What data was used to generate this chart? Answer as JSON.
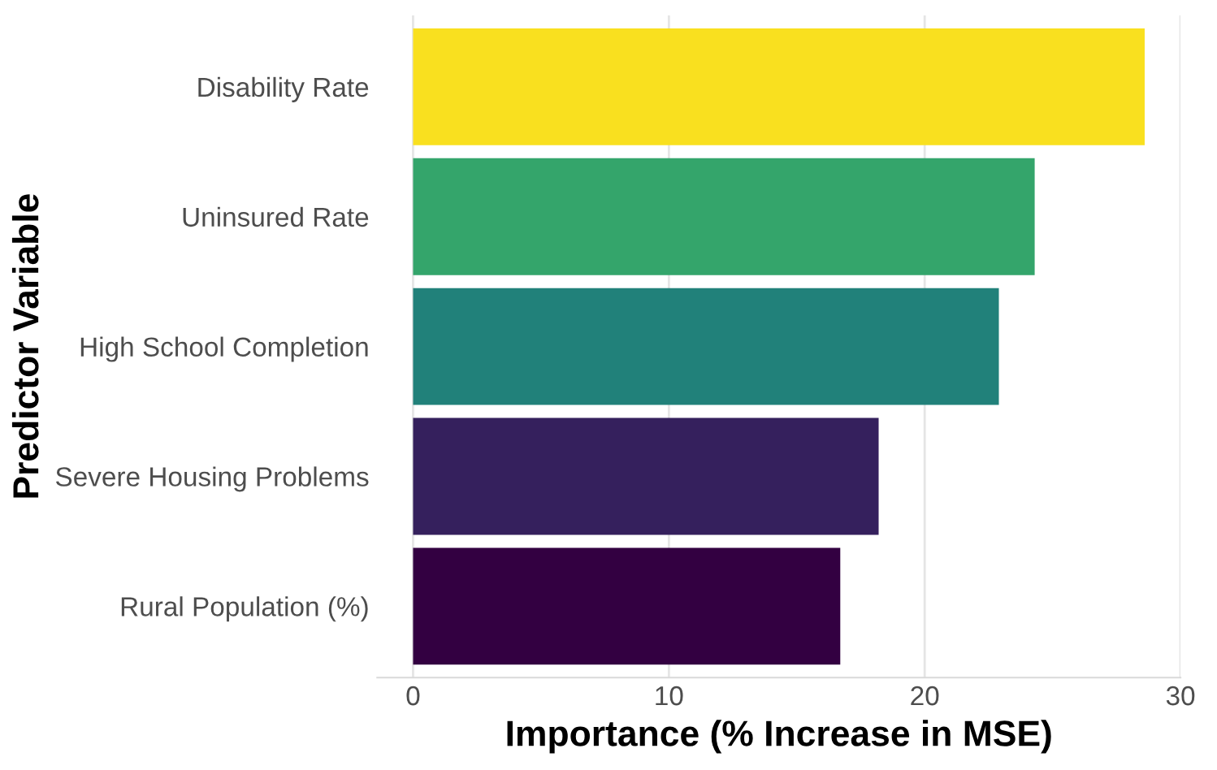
{
  "chart_data": {
    "type": "bar",
    "orientation": "horizontal",
    "xlabel": "Importance (% Increase in MSE)",
    "ylabel": "Predictor Variable",
    "categories": [
      "Disability Rate",
      "Uninsured Rate",
      "High School Completion",
      "Severe Housing Problems",
      "Rural Population (%)"
    ],
    "values": [
      28.6,
      24.3,
      22.9,
      18.2,
      16.7
    ],
    "colors": [
      "#f9e01f",
      "#34a56b",
      "#21817a",
      "#35205d",
      "#330041"
    ],
    "xlim": [
      -1.4,
      30
    ],
    "xticks": [
      0,
      10,
      20,
      30
    ],
    "grid": "x"
  }
}
